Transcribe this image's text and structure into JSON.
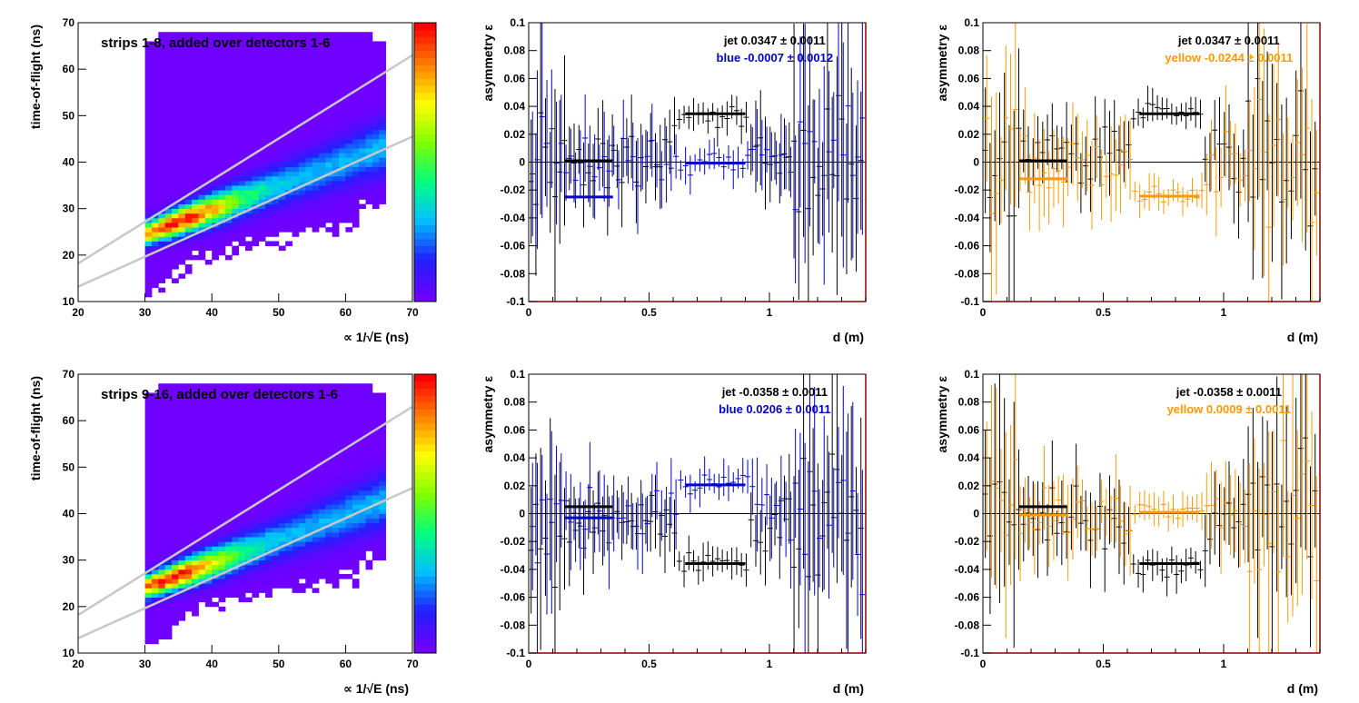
{
  "chart_data": [
    {
      "type": "heatmap",
      "label": "strips 1-8, added over detectors 1-6",
      "xlabel": "∝ 1/√E (ns)",
      "ylabel": "time-of-flight (ns)",
      "xlim": [
        20,
        70
      ],
      "ylim": [
        10,
        70
      ],
      "xticks": [
        "20",
        "30",
        "40",
        "50",
        "60",
        "70"
      ],
      "yticks": [
        "10",
        "20",
        "30",
        "40",
        "50",
        "60",
        "70"
      ],
      "density_ridge": {
        "slope": 0.52,
        "intercept": 9.0,
        "peak_x": 35.0
      },
      "cut_lines": [
        {
          "x": [
            20,
            70
          ],
          "y": [
            18.2,
            63.0
          ]
        },
        {
          "x": [
            20,
            70
          ],
          "y": [
            13.2,
            45.5
          ]
        }
      ],
      "palette": [
        "#7000ff",
        "#2020ff",
        "#00c0ff",
        "#00ff80",
        "#80ff00",
        "#ffff00",
        "#ff8000",
        "#ff0000"
      ]
    },
    {
      "type": "scatter",
      "xlabel": "d (m)",
      "ylabel": "asymmetry ε",
      "xlim": [
        0,
        1.4
      ],
      "ylim": [
        -0.1,
        0.1
      ],
      "xticks": [
        "0",
        "0.5",
        "1"
      ],
      "yticks": [
        "-0.1",
        "-0.08",
        "-0.06",
        "-0.04",
        "-0.02",
        "0",
        "0.02",
        "0.04",
        "0.06",
        "0.08",
        "0.1"
      ],
      "legend": [
        {
          "text": "jet  0.0347 ± 0.0011",
          "color": "#000000"
        },
        {
          "text": "blue -0.0007 ± 0.0012",
          "color": "#0000cc"
        }
      ],
      "series": [
        {
          "name": "jet",
          "color": "#000000",
          "amp": 0.034,
          "seed": 11,
          "fits": [
            {
              "x": [
                0.15,
                0.35
              ],
              "y": 0.001
            },
            {
              "x": [
                0.65,
                0.9
              ],
              "y": 0.0347
            }
          ]
        },
        {
          "name": "blue",
          "color": "#0000cc",
          "amp": -0.001,
          "seed": 23,
          "fits": [
            {
              "x": [
                0.15,
                0.35
              ],
              "y": -0.025
            },
            {
              "x": [
                0.65,
                0.9
              ],
              "y": -0.0007
            }
          ]
        }
      ]
    },
    {
      "type": "scatter",
      "xlabel": "d (m)",
      "ylabel": "asymmetry ε",
      "xlim": [
        0,
        1.4
      ],
      "ylim": [
        -0.1,
        0.1
      ],
      "xticks": [
        "0",
        "0.5",
        "1"
      ],
      "yticks": [
        "-0.1",
        "-0.08",
        "-0.06",
        "-0.04",
        "-0.02",
        "0",
        "0.02",
        "0.04",
        "0.06",
        "0.08",
        "0.1"
      ],
      "legend": [
        {
          "text": "jet  0.0347 ± 0.0011",
          "color": "#000000"
        },
        {
          "text": "yellow -0.0244 ± 0.0011",
          "color": "#ff9900"
        }
      ],
      "series": [
        {
          "name": "jet",
          "color": "#000000",
          "amp": 0.034,
          "seed": 37,
          "fits": [
            {
              "x": [
                0.15,
                0.35
              ],
              "y": 0.001
            },
            {
              "x": [
                0.65,
                0.9
              ],
              "y": 0.0347
            }
          ]
        },
        {
          "name": "yellow",
          "color": "#ff9900",
          "amp": -0.024,
          "seed": 41,
          "fits": [
            {
              "x": [
                0.15,
                0.35
              ],
              "y": -0.012
            },
            {
              "x": [
                0.65,
                0.9
              ],
              "y": -0.0244
            }
          ]
        }
      ]
    },
    {
      "type": "heatmap",
      "label": "strips 9-16, added over detectors 1-6",
      "xlabel": "∝ 1/√E (ns)",
      "ylabel": "time-of-flight (ns)",
      "xlim": [
        20,
        70
      ],
      "ylim": [
        10,
        70
      ],
      "xticks": [
        "20",
        "30",
        "40",
        "50",
        "60",
        "70"
      ],
      "yticks": [
        "10",
        "20",
        "30",
        "40",
        "50",
        "60",
        "70"
      ],
      "density_ridge": {
        "slope": 0.52,
        "intercept": 8.5,
        "peak_x": 34.0
      },
      "cut_lines": [
        {
          "x": [
            20,
            70
          ],
          "y": [
            18.2,
            63.0
          ]
        },
        {
          "x": [
            20,
            70
          ],
          "y": [
            13.2,
            45.5
          ]
        }
      ],
      "palette": [
        "#7000ff",
        "#2020ff",
        "#00c0ff",
        "#00ff80",
        "#80ff00",
        "#ffff00",
        "#ff8000",
        "#ff0000"
      ]
    },
    {
      "type": "scatter",
      "xlabel": "d (m)",
      "ylabel": "asymmetry ε",
      "xlim": [
        0,
        1.4
      ],
      "ylim": [
        -0.1,
        0.1
      ],
      "xticks": [
        "0",
        "0.5",
        "1"
      ],
      "yticks": [
        "-0.1",
        "-0.08",
        "-0.06",
        "-0.04",
        "-0.02",
        "0",
        "0.02",
        "0.04",
        "0.06",
        "0.08",
        "0.1"
      ],
      "legend": [
        {
          "text": "jet -0.0358 ± 0.0011",
          "color": "#000000"
        },
        {
          "text": "blue  0.0206 ± 0.0011",
          "color": "#0000cc"
        }
      ],
      "series": [
        {
          "name": "jet",
          "color": "#000000",
          "amp": -0.036,
          "seed": 53,
          "fits": [
            {
              "x": [
                0.15,
                0.35
              ],
              "y": 0.005
            },
            {
              "x": [
                0.65,
                0.9
              ],
              "y": -0.0358
            }
          ]
        },
        {
          "name": "blue",
          "color": "#0000cc",
          "amp": 0.0206,
          "seed": 67,
          "fits": [
            {
              "x": [
                0.15,
                0.35
              ],
              "y": -0.003
            },
            {
              "x": [
                0.65,
                0.9
              ],
              "y": 0.0206
            }
          ]
        }
      ]
    },
    {
      "type": "scatter",
      "xlabel": "d (m)",
      "ylabel": "asymmetry ε",
      "xlim": [
        0,
        1.4
      ],
      "ylim": [
        -0.1,
        0.1
      ],
      "xticks": [
        "0",
        "0.5",
        "1"
      ],
      "yticks": [
        "-0.1",
        "-0.08",
        "-0.06",
        "-0.04",
        "-0.02",
        "0",
        "0.02",
        "0.04",
        "0.06",
        "0.08",
        "0.1"
      ],
      "legend": [
        {
          "text": "jet -0.0358 ± 0.0011",
          "color": "#000000"
        },
        {
          "text": "yellow  0.0009 ± 0.0011",
          "color": "#ff9900"
        }
      ],
      "series": [
        {
          "name": "jet",
          "color": "#000000",
          "amp": -0.036,
          "seed": 71,
          "fits": [
            {
              "x": [
                0.15,
                0.35
              ],
              "y": 0.005
            },
            {
              "x": [
                0.65,
                0.9
              ],
              "y": -0.0358
            }
          ]
        },
        {
          "name": "yellow",
          "color": "#ff9900",
          "amp": 0.001,
          "seed": 83,
          "fits": [
            {
              "x": [
                0.15,
                0.35
              ],
              "y": -0.001
            },
            {
              "x": [
                0.65,
                0.9
              ],
              "y": 0.0009
            }
          ]
        }
      ]
    }
  ]
}
